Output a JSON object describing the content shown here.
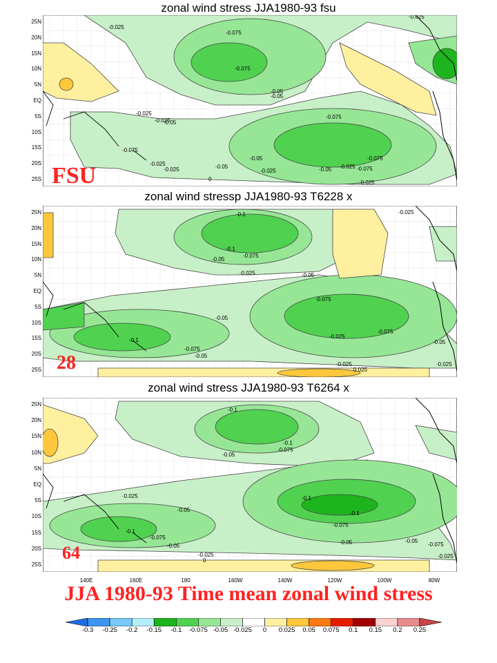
{
  "panels": [
    {
      "title": "zonal wind stress JJA1980-93 fsu",
      "tag": "FSU",
      "labels": [
        "-0.025",
        "-0.075",
        "-0.075",
        "-0.05",
        "-0.05",
        "-0.025",
        "-0.025",
        "-0.05",
        "-0.075",
        "-0.075",
        "-0.05",
        "-0.025",
        "-0.025",
        "-0.075",
        "-0.025",
        "-0.05",
        "-0.025",
        "-0.05",
        "-0.075",
        "-0.025",
        "0",
        "-0.025"
      ]
    },
    {
      "title": "zonal wind stressp JJA1980-93 T6228 x",
      "tag": "28",
      "labels": [
        "-0.025",
        "-0.1",
        "-0.1",
        "-0.075",
        "-0.05",
        "-0.025",
        "-0.05",
        "-0.075",
        "-0.05",
        "-0.1",
        "-0.075",
        "-0.05",
        "-0.025",
        "-0.075",
        "-0.05",
        "-0.025",
        "-0.025",
        "0.025"
      ]
    },
    {
      "title": "zonal wind stress JJA1980-93 T6264 x",
      "tag": "64",
      "labels": [
        "-0.1",
        "-0.1",
        "-0.075",
        "-0.05",
        "-0.025",
        "-0.05",
        "-0.1",
        "-0.1",
        "-0.075",
        "-0.05",
        "-0.1",
        "-0.075",
        "-0.05",
        "-0.025",
        "0",
        "-0.05",
        "-0.075",
        "-0.025"
      ]
    }
  ],
  "lat_labels": [
    "25N",
    "20N",
    "15N",
    "10N",
    "5N",
    "EQ",
    "5S",
    "10S",
    "15S",
    "20S",
    "25S"
  ],
  "lon_labels": [
    "140E",
    "160E",
    "180",
    "160W",
    "140W",
    "120W",
    "100W",
    "80W"
  ],
  "main_title": "JJA 1980-93 Time mean zonal wind stress",
  "colorbar": {
    "labels": [
      "-0.3",
      "-0.25",
      "-0.2",
      "-0.15",
      "-0.1",
      "-0.075",
      "-0.05",
      "-0.025",
      "0",
      "0.025",
      "0.05",
      "0.075",
      "0.1",
      "0.15",
      "0.2",
      "0.25"
    ],
    "colors": [
      "#1e6ee6",
      "#3c96f0",
      "#78c8fa",
      "#b4f0fa",
      "#1eb41e",
      "#50d250",
      "#96e696",
      "#c8f0c8",
      "#ffffff",
      "#fff0a0",
      "#ffc83c",
      "#ff7814",
      "#e61e00",
      "#a00000",
      "#fad2d2",
      "#e68c8c",
      "#c84646"
    ]
  }
}
